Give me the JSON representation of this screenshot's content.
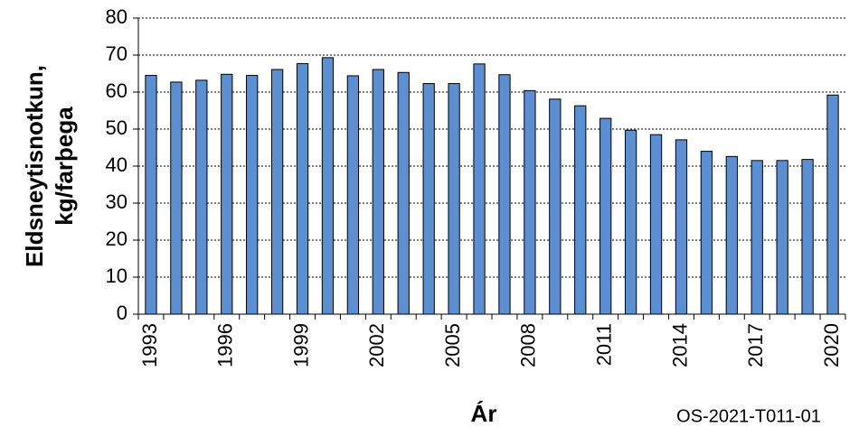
{
  "chart_data": {
    "type": "bar",
    "ylabel": [
      "Eldsneytisnotkun,",
      "kg/farþega"
    ],
    "xlabel": "Ár",
    "annotation": "OS-2021-T011-01",
    "categories": [
      "1993",
      null,
      null,
      "1996",
      null,
      null,
      "1999",
      null,
      null,
      "2002",
      null,
      null,
      "2005",
      null,
      null,
      "2008",
      null,
      null,
      "2011",
      null,
      null,
      "2014",
      null,
      null,
      "2017",
      null,
      null,
      "2020"
    ],
    "values": [
      64.5,
      62.7,
      63.2,
      64.8,
      64.5,
      66.1,
      67.7,
      69.3,
      64.4,
      66.1,
      65.3,
      62.3,
      62.3,
      67.6,
      64.7,
      60.4,
      58.1,
      56.3,
      52.9,
      49.7,
      48.5,
      47.1,
      44.0,
      42.6,
      41.5,
      41.5,
      41.8,
      59.2
    ],
    "color": "#5b8fd2",
    "ylim": [
      0,
      80
    ],
    "yticks": [
      0,
      10,
      20,
      30,
      40,
      50,
      60,
      70,
      80
    ],
    "grid": true
  }
}
